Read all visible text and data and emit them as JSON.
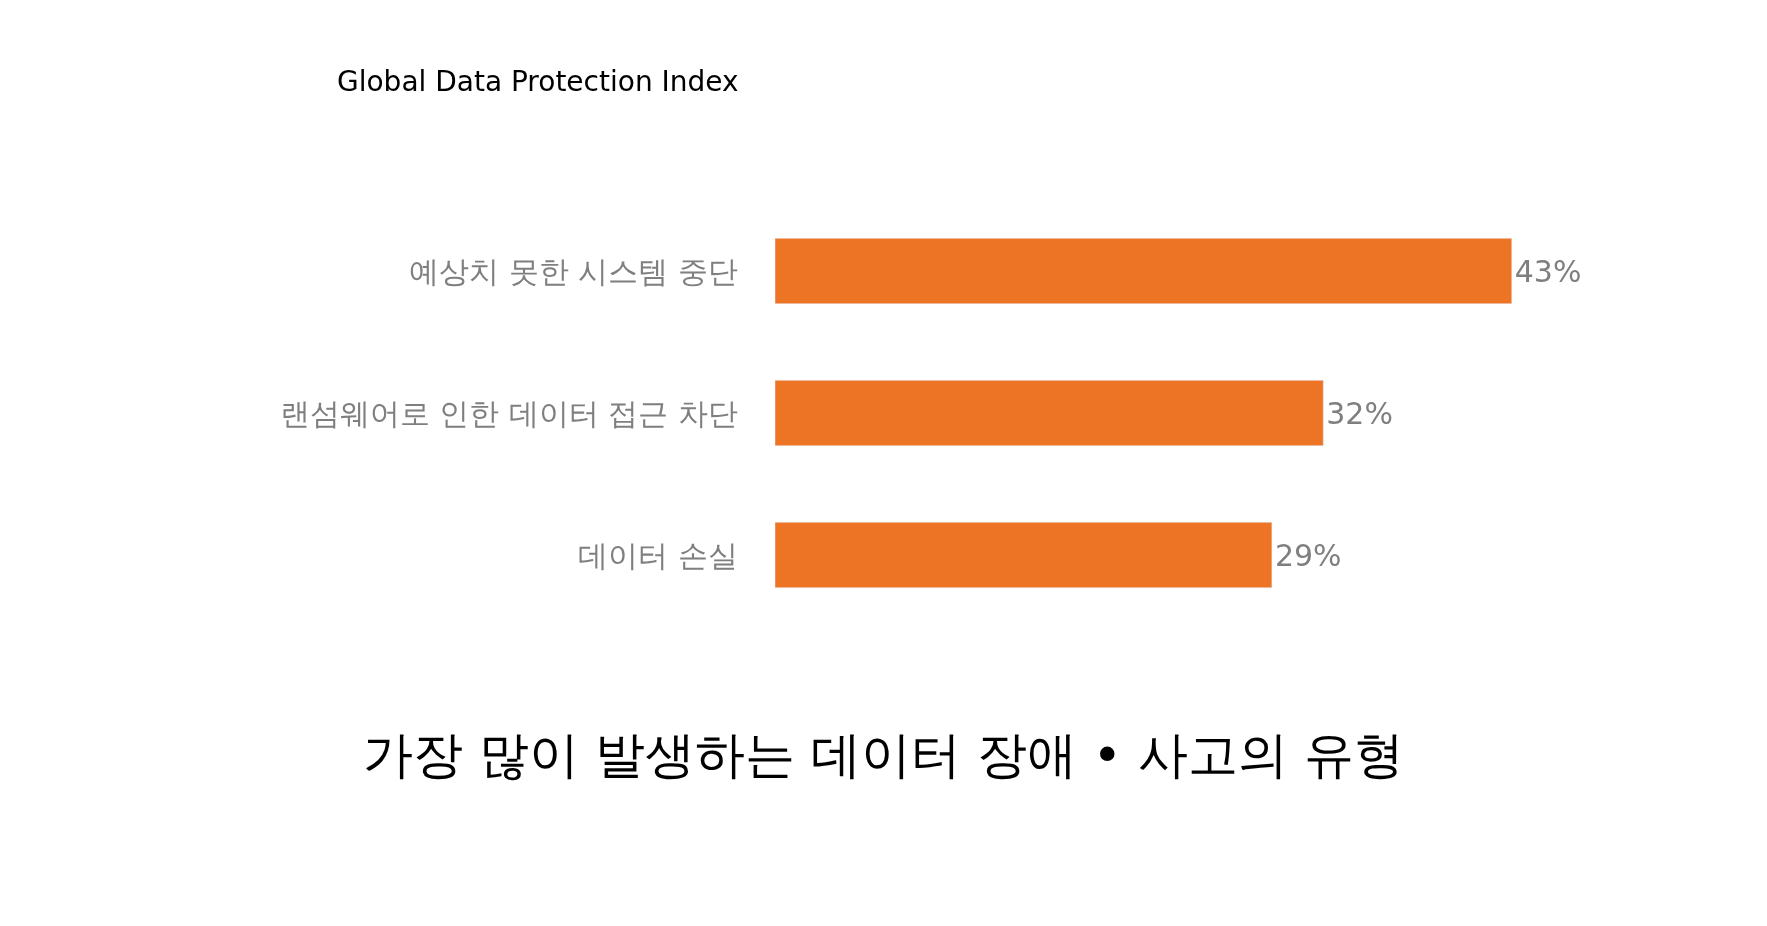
{
  "chart_data": {
    "type": "bar",
    "orientation": "horizontal",
    "title": "가장 많이 발생하는 데이터 장애 • 사고의 유형",
    "subtitle": "Global Data Protection Index",
    "categories": [
      "예상치 못한 시스템 중단",
      "랜섬웨어로 인한 데이터 접근 차단",
      "데이터 손실"
    ],
    "values": [
      43,
      32,
      29
    ],
    "value_labels": [
      "43%",
      "32%",
      "29%"
    ],
    "color": "#ec7424"
  }
}
